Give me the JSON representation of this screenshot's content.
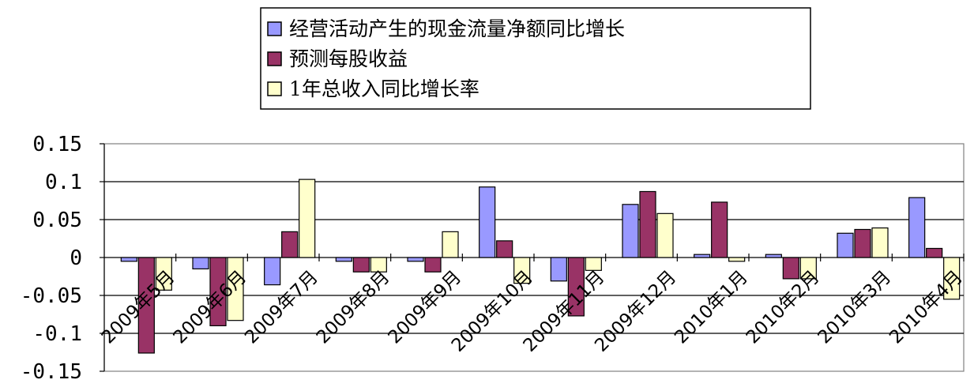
{
  "chart_data": {
    "type": "bar",
    "title": "",
    "xlabel": "",
    "ylabel": "",
    "ylim": [
      -0.15,
      0.15
    ],
    "yticks": [
      "0.15",
      "0.1",
      "0.05",
      "0",
      "-0.05",
      "-0.1",
      "-0.15"
    ],
    "grid": true,
    "legend_position": "top-center",
    "categories": [
      "2009年5月",
      "2009年6月",
      "2009年7月",
      "2009年8月",
      "2009年9月",
      "2009年10月",
      "2009年11月",
      "2009年12月",
      "2010年1月",
      "2010年2月",
      "2010年3月",
      "2010年4月"
    ],
    "series": [
      {
        "name": "经营活动产生的现金流量净额同比增长",
        "color": "#9999ff",
        "values": [
          -0.005,
          -0.015,
          -0.036,
          -0.005,
          -0.005,
          0.093,
          -0.031,
          0.07,
          0.004,
          0.004,
          0.032,
          0.079
        ]
      },
      {
        "name": "预测每股收益",
        "color": "#993366",
        "values": [
          -0.126,
          -0.09,
          0.034,
          -0.019,
          -0.019,
          0.022,
          -0.077,
          0.087,
          0.073,
          -0.028,
          0.037,
          0.012
        ]
      },
      {
        "name": "1年总收入同比增长率",
        "color": "#ffffcc",
        "values": [
          -0.043,
          -0.083,
          0.103,
          -0.019,
          0.034,
          -0.034,
          -0.017,
          0.058,
          -0.005,
          -0.028,
          0.039,
          -0.055
        ]
      }
    ]
  }
}
